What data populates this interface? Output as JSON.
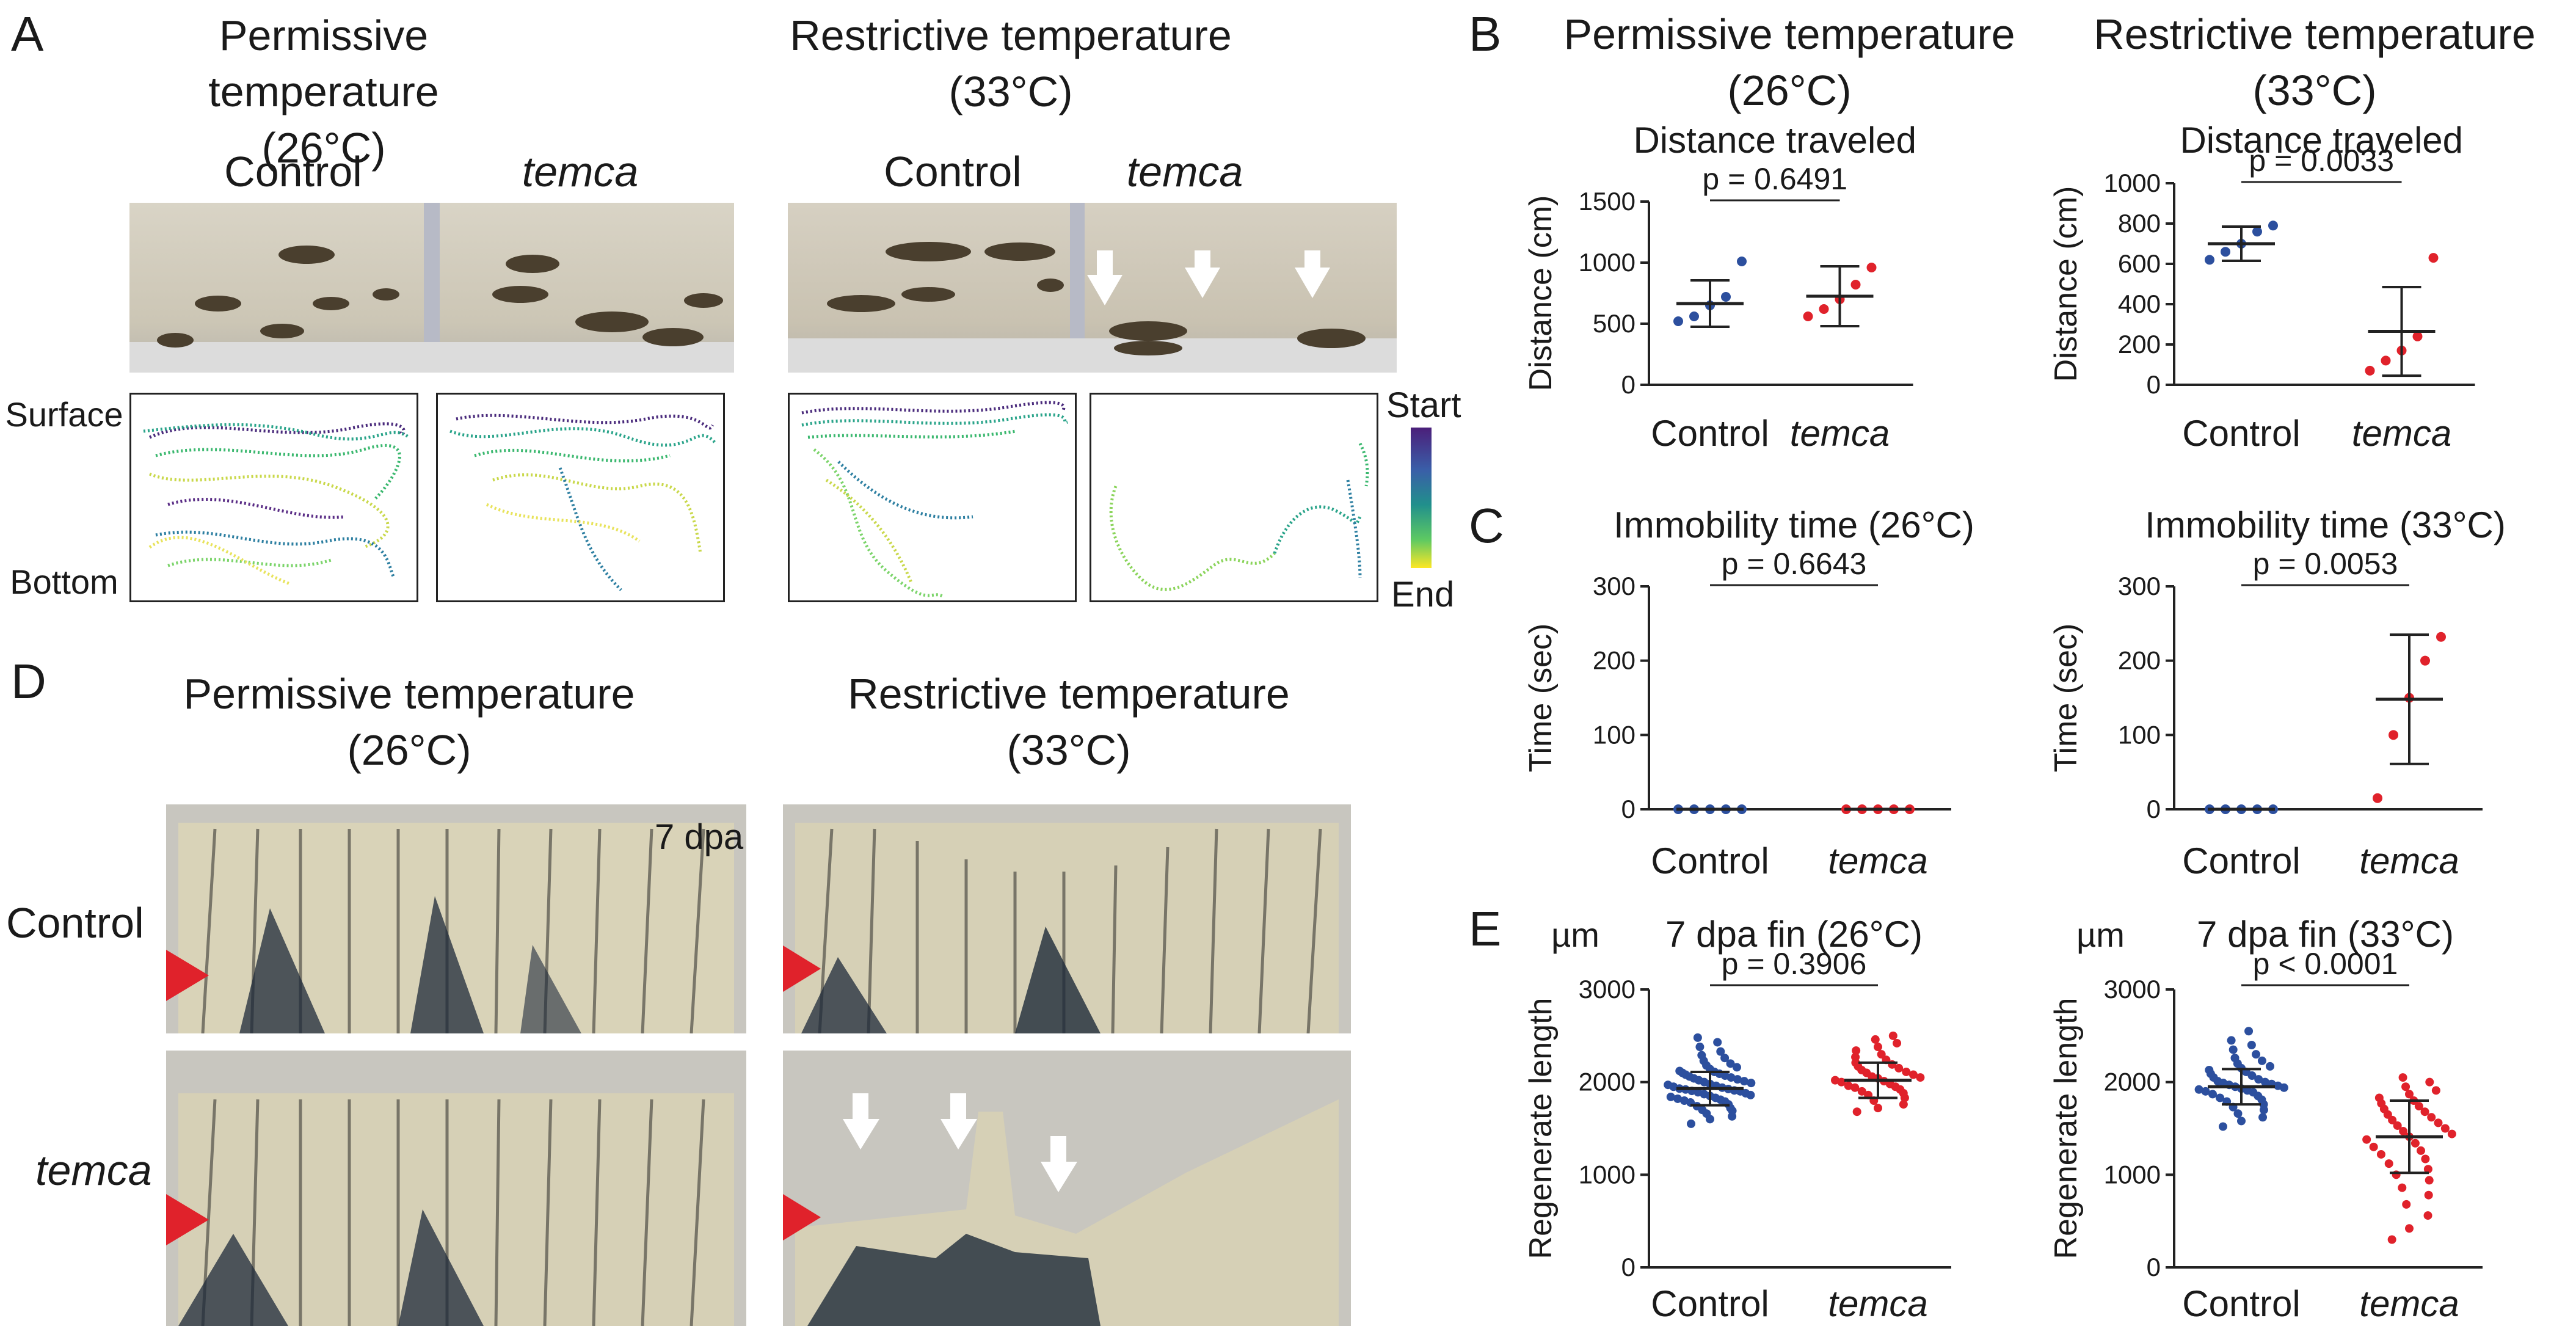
{
  "panelA": {
    "label": "A",
    "permissive": {
      "title_line1": "Permissive temperature",
      "title_line2": "(26°C)"
    },
    "restrictive": {
      "title_line1": "Restrictive temperature",
      "title_line2": "(33°C)"
    },
    "control_label": "Control",
    "temca_label": "temca",
    "surface_label": "Surface",
    "bottom_label": "Bottom",
    "colorbar": {
      "start": "Start",
      "end": "End"
    }
  },
  "panelB": {
    "label": "B",
    "permissive": {
      "title_line1": "Permissive temperature",
      "title_line2": "(26°C)"
    },
    "restrictive": {
      "title_line1": "Restrictive temperature",
      "title_line2": "(33°C)"
    }
  },
  "panelC": {
    "label": "C"
  },
  "panelD": {
    "label": "D",
    "permissive": {
      "title_line1": "Permissive temperature",
      "title_line2": "(26°C)"
    },
    "restrictive": {
      "title_line1": "Restrictive temperature",
      "title_line2": "(33°C)"
    },
    "control_label": "Control",
    "temca_label": "temca",
    "dpa_label": "7 dpa"
  },
  "panelE": {
    "label": "E"
  },
  "colors": {
    "control": "#2c4f9e",
    "temca": "#e0222b",
    "arrowhead": "#e0222b"
  },
  "chart_data": [
    {
      "id": "B-26",
      "type": "scatter",
      "title": "Distance traveled",
      "ylabel": "Distance (cm)",
      "ylim": [
        0,
        1500
      ],
      "yticks": [
        0,
        500,
        1000,
        1500
      ],
      "categories": [
        "Control",
        "temca"
      ],
      "pvalue": "p = 0.6491",
      "series": [
        {
          "name": "Control",
          "values": [
            520,
            560,
            650,
            720,
            1010
          ],
          "mean": 665,
          "sd": 190
        },
        {
          "name": "temca",
          "values": [
            560,
            620,
            700,
            820,
            960
          ],
          "mean": 725,
          "sd": 245
        }
      ]
    },
    {
      "id": "B-33",
      "type": "scatter",
      "title": "Distance traveled",
      "ylabel": "Distance (cm)",
      "ylim": [
        0,
        1000
      ],
      "yticks": [
        0,
        200,
        400,
        600,
        800,
        1000
      ],
      "categories": [
        "Control",
        "temca"
      ],
      "pvalue": "p = 0.0033",
      "series": [
        {
          "name": "Control",
          "values": [
            620,
            660,
            700,
            760,
            790
          ],
          "mean": 700,
          "sd": 85
        },
        {
          "name": "temca",
          "values": [
            70,
            120,
            170,
            240,
            630
          ],
          "mean": 265,
          "sd": 220
        }
      ]
    },
    {
      "id": "C-26",
      "type": "scatter",
      "title": "Immobility time (26°C)",
      "ylabel": "Time (sec)",
      "ylim": [
        0,
        300
      ],
      "yticks": [
        0,
        100,
        200,
        300
      ],
      "categories": [
        "Control",
        "temca"
      ],
      "pvalue": "p = 0.6643",
      "series": [
        {
          "name": "Control",
          "values": [
            0,
            0,
            0,
            0,
            0
          ],
          "mean": 0,
          "sd": 0
        },
        {
          "name": "temca",
          "values": [
            0,
            0,
            0,
            0,
            0
          ],
          "mean": 0,
          "sd": 0
        }
      ]
    },
    {
      "id": "C-33",
      "type": "scatter",
      "title": "Immobility time (33°C)",
      "ylabel": "Time (sec)",
      "ylim": [
        0,
        300
      ],
      "yticks": [
        0,
        100,
        200,
        300
      ],
      "categories": [
        "Control",
        "temca"
      ],
      "pvalue": "p = 0.0053",
      "series": [
        {
          "name": "Control",
          "values": [
            0,
            0,
            0,
            0,
            0
          ],
          "mean": 0,
          "sd": 0
        },
        {
          "name": "temca",
          "values": [
            15,
            100,
            150,
            200,
            232
          ],
          "mean": 148,
          "sd": 87
        }
      ]
    },
    {
      "id": "E-26",
      "type": "scatter",
      "title": "7 dpa fin (26°C)",
      "unit": "µm",
      "ylabel": "Regenerate length",
      "ylim": [
        0,
        3000
      ],
      "yticks": [
        0,
        1000,
        2000,
        3000
      ],
      "categories": [
        "Control",
        "temca"
      ],
      "pvalue": "p = 0.3906",
      "series": [
        {
          "name": "Control",
          "values": [
            1550,
            1600,
            1630,
            1660,
            1690,
            1700,
            1720,
            1740,
            1760,
            1780,
            1790,
            1800,
            1810,
            1820,
            1830,
            1840,
            1850,
            1860,
            1870,
            1880,
            1890,
            1900,
            1905,
            1910,
            1920,
            1925,
            1930,
            1940,
            1950,
            1960,
            1970,
            1980,
            1990,
            2000,
            2010,
            2020,
            2030,
            2040,
            2050,
            2060,
            2070,
            2080,
            2090,
            2100,
            2110,
            2120,
            2140,
            2160,
            2180,
            2200,
            2230,
            2260,
            2290,
            2330,
            2380,
            2430,
            2480
          ],
          "mean": 1930,
          "sd": 180
        },
        {
          "name": "temca",
          "values": [
            1680,
            1720,
            1760,
            1800,
            1830,
            1860,
            1880,
            1900,
            1920,
            1940,
            1950,
            1960,
            1980,
            2000,
            2010,
            2020,
            2040,
            2050,
            2060,
            2080,
            2100,
            2110,
            2130,
            2150,
            2170,
            2190,
            2210,
            2240,
            2270,
            2300,
            2340,
            2380,
            2420,
            2460,
            2500
          ],
          "mean": 2020,
          "sd": 190
        }
      ]
    },
    {
      "id": "E-33",
      "type": "scatter",
      "title": "7 dpa fin (33°C)",
      "unit": "µm",
      "ylabel": "Regenerate length",
      "ylim": [
        0,
        3000
      ],
      "yticks": [
        0,
        1000,
        2000,
        3000
      ],
      "categories": [
        "Control",
        "temca"
      ],
      "pvalue": "p < 0.0001",
      "series": [
        {
          "name": "Control",
          "values": [
            1520,
            1580,
            1620,
            1660,
            1700,
            1730,
            1760,
            1790,
            1810,
            1830,
            1850,
            1870,
            1890,
            1900,
            1910,
            1920,
            1930,
            1940,
            1950,
            1960,
            1970,
            1980,
            1990,
            2000,
            2010,
            2030,
            2050,
            2070,
            2090,
            2110,
            2130,
            2150,
            2170,
            2200,
            2230,
            2260,
            2300,
            2350,
            2400,
            2450,
            2550
          ],
          "mean": 1950,
          "sd": 190
        },
        {
          "name": "temca",
          "values": [
            300,
            420,
            560,
            680,
            780,
            860,
            940,
            1000,
            1060,
            1120,
            1170,
            1220,
            1260,
            1300,
            1340,
            1380,
            1410,
            1440,
            1470,
            1500,
            1530,
            1560,
            1590,
            1620,
            1650,
            1680,
            1710,
            1740,
            1770,
            1800,
            1830,
            1870,
            1910,
            1950,
            2000,
            2050
          ],
          "mean": 1410,
          "sd": 390
        }
      ]
    }
  ]
}
